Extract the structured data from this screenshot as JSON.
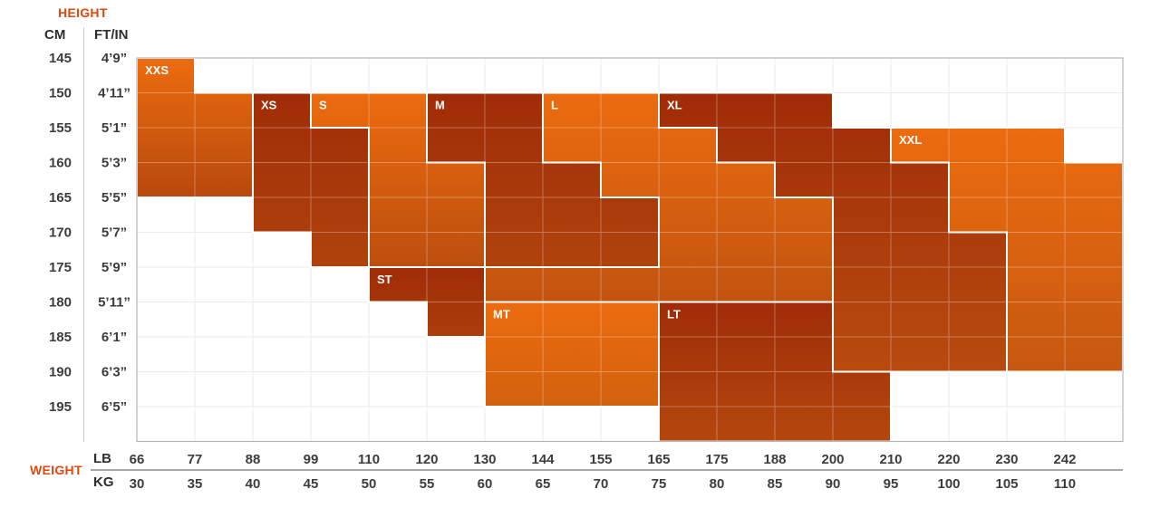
{
  "header": {
    "height_label": "HEIGHT",
    "cm_label": "CM",
    "ftin_label": "FT/IN",
    "weight_label": "WEIGHT",
    "lb_label": "LB",
    "kg_label": "KG"
  },
  "colors": {
    "accent": "#e2470f",
    "axis_text": "#3c3c3c",
    "header_text": "#2e2e2e",
    "grid_line": "#e2e2e2",
    "chart_border": "#b3b3b3",
    "region_border": "#ffffff",
    "size_label_text": "#ffffff",
    "light_gradient_top": "#ec6c0f",
    "dark_gradient_top": "#a02c08"
  },
  "chart_data": {
    "type": "heatmap",
    "grid": true,
    "legend_position": "none",
    "y_axis": {
      "label": "HEIGHT",
      "units": [
        "CM",
        "FT/IN"
      ],
      "cm_ticks": [
        145,
        150,
        155,
        160,
        165,
        170,
        175,
        180,
        185,
        190,
        195
      ],
      "ftin_ticks": [
        "4’9”",
        "4’11”",
        "5’1”",
        "5’3”",
        "5’5”",
        "5’7”",
        "5’9”",
        "5’11”",
        "6’1”",
        "6’3”",
        "6’5”"
      ]
    },
    "x_axis": {
      "label": "WEIGHT",
      "units": [
        "LB",
        "KG"
      ],
      "lb_ticks": [
        66,
        77,
        88,
        99,
        110,
        120,
        130,
        144,
        155,
        165,
        175,
        188,
        200,
        210,
        220,
        230,
        242
      ],
      "kg_ticks": [
        30,
        35,
        40,
        45,
        50,
        55,
        60,
        65,
        70,
        75,
        80,
        85,
        90,
        95,
        100,
        105,
        110
      ]
    },
    "sizes": [
      {
        "code": "XXS",
        "shade": "light",
        "gradient_end": "#b8490d",
        "polygon": [
          [
            0,
            0
          ],
          [
            1,
            0
          ],
          [
            1,
            1
          ],
          [
            2,
            1
          ],
          [
            2,
            4
          ],
          [
            0,
            4
          ]
        ]
      },
      {
        "code": "XS",
        "shade": "dark",
        "gradient_end": "#b0430c",
        "polygon": [
          [
            2,
            1
          ],
          [
            3,
            1
          ],
          [
            3,
            2
          ],
          [
            4,
            2
          ],
          [
            4,
            6
          ],
          [
            3,
            6
          ],
          [
            3,
            5
          ],
          [
            2,
            5
          ]
        ]
      },
      {
        "code": "S",
        "shade": "light",
        "gradient_end": "#bc4e0e",
        "polygon": [
          [
            3,
            1
          ],
          [
            5,
            1
          ],
          [
            5,
            3
          ],
          [
            6,
            3
          ],
          [
            6,
            6
          ],
          [
            4,
            6
          ],
          [
            4,
            2
          ],
          [
            3,
            2
          ]
        ]
      },
      {
        "code": "M",
        "shade": "dark",
        "gradient_end": "#b0430c",
        "polygon": [
          [
            5,
            1
          ],
          [
            7,
            1
          ],
          [
            7,
            3
          ],
          [
            8,
            3
          ],
          [
            8,
            4
          ],
          [
            9,
            4
          ],
          [
            9,
            6
          ],
          [
            6,
            6
          ],
          [
            6,
            3
          ],
          [
            5,
            3
          ]
        ]
      },
      {
        "code": "L",
        "shade": "light",
        "gradient_end": "#c2540f",
        "polygon": [
          [
            7,
            1
          ],
          [
            9,
            1
          ],
          [
            9,
            2
          ],
          [
            10,
            2
          ],
          [
            10,
            3
          ],
          [
            11,
            3
          ],
          [
            11,
            4
          ],
          [
            12,
            4
          ],
          [
            12,
            7
          ],
          [
            6,
            7
          ],
          [
            6,
            6
          ],
          [
            9,
            6
          ],
          [
            9,
            4
          ],
          [
            8,
            4
          ],
          [
            8,
            3
          ],
          [
            7,
            3
          ]
        ]
      },
      {
        "code": "XL",
        "shade": "dark",
        "gradient_end": "#b84b0e",
        "polygon": [
          [
            9,
            1
          ],
          [
            12,
            1
          ],
          [
            12,
            2
          ],
          [
            13,
            2
          ],
          [
            13,
            3
          ],
          [
            14,
            3
          ],
          [
            14,
            5
          ],
          [
            15,
            5
          ],
          [
            15,
            9
          ],
          [
            12,
            9
          ],
          [
            12,
            4
          ],
          [
            11,
            4
          ],
          [
            11,
            3
          ],
          [
            10,
            3
          ],
          [
            10,
            2
          ],
          [
            9,
            2
          ]
        ]
      },
      {
        "code": "XXL",
        "shade": "light",
        "gradient_end": "#c65810",
        "polygon": [
          [
            13,
            2
          ],
          [
            16,
            2
          ],
          [
            16,
            3
          ],
          [
            17,
            3
          ],
          [
            17,
            9
          ],
          [
            15,
            9
          ],
          [
            15,
            5
          ],
          [
            14,
            5
          ],
          [
            14,
            3
          ],
          [
            13,
            3
          ]
        ]
      },
      {
        "code": "ST",
        "shade": "dark",
        "gradient_end": "#ac3d0a",
        "polygon": [
          [
            4,
            6
          ],
          [
            6,
            6
          ],
          [
            6,
            8
          ],
          [
            5,
            8
          ],
          [
            5,
            7
          ],
          [
            4,
            7
          ]
        ]
      },
      {
        "code": "MT",
        "shade": "light",
        "gradient_end": "#d2610e",
        "polygon": [
          [
            6,
            7
          ],
          [
            9,
            7
          ],
          [
            9,
            10
          ],
          [
            6,
            10
          ]
        ]
      },
      {
        "code": "LT",
        "shade": "dark",
        "gradient_end": "#b4470d",
        "polygon": [
          [
            9,
            7
          ],
          [
            12,
            7
          ],
          [
            12,
            9
          ],
          [
            13,
            9
          ],
          [
            13,
            11
          ],
          [
            9,
            11
          ]
        ]
      }
    ]
  }
}
